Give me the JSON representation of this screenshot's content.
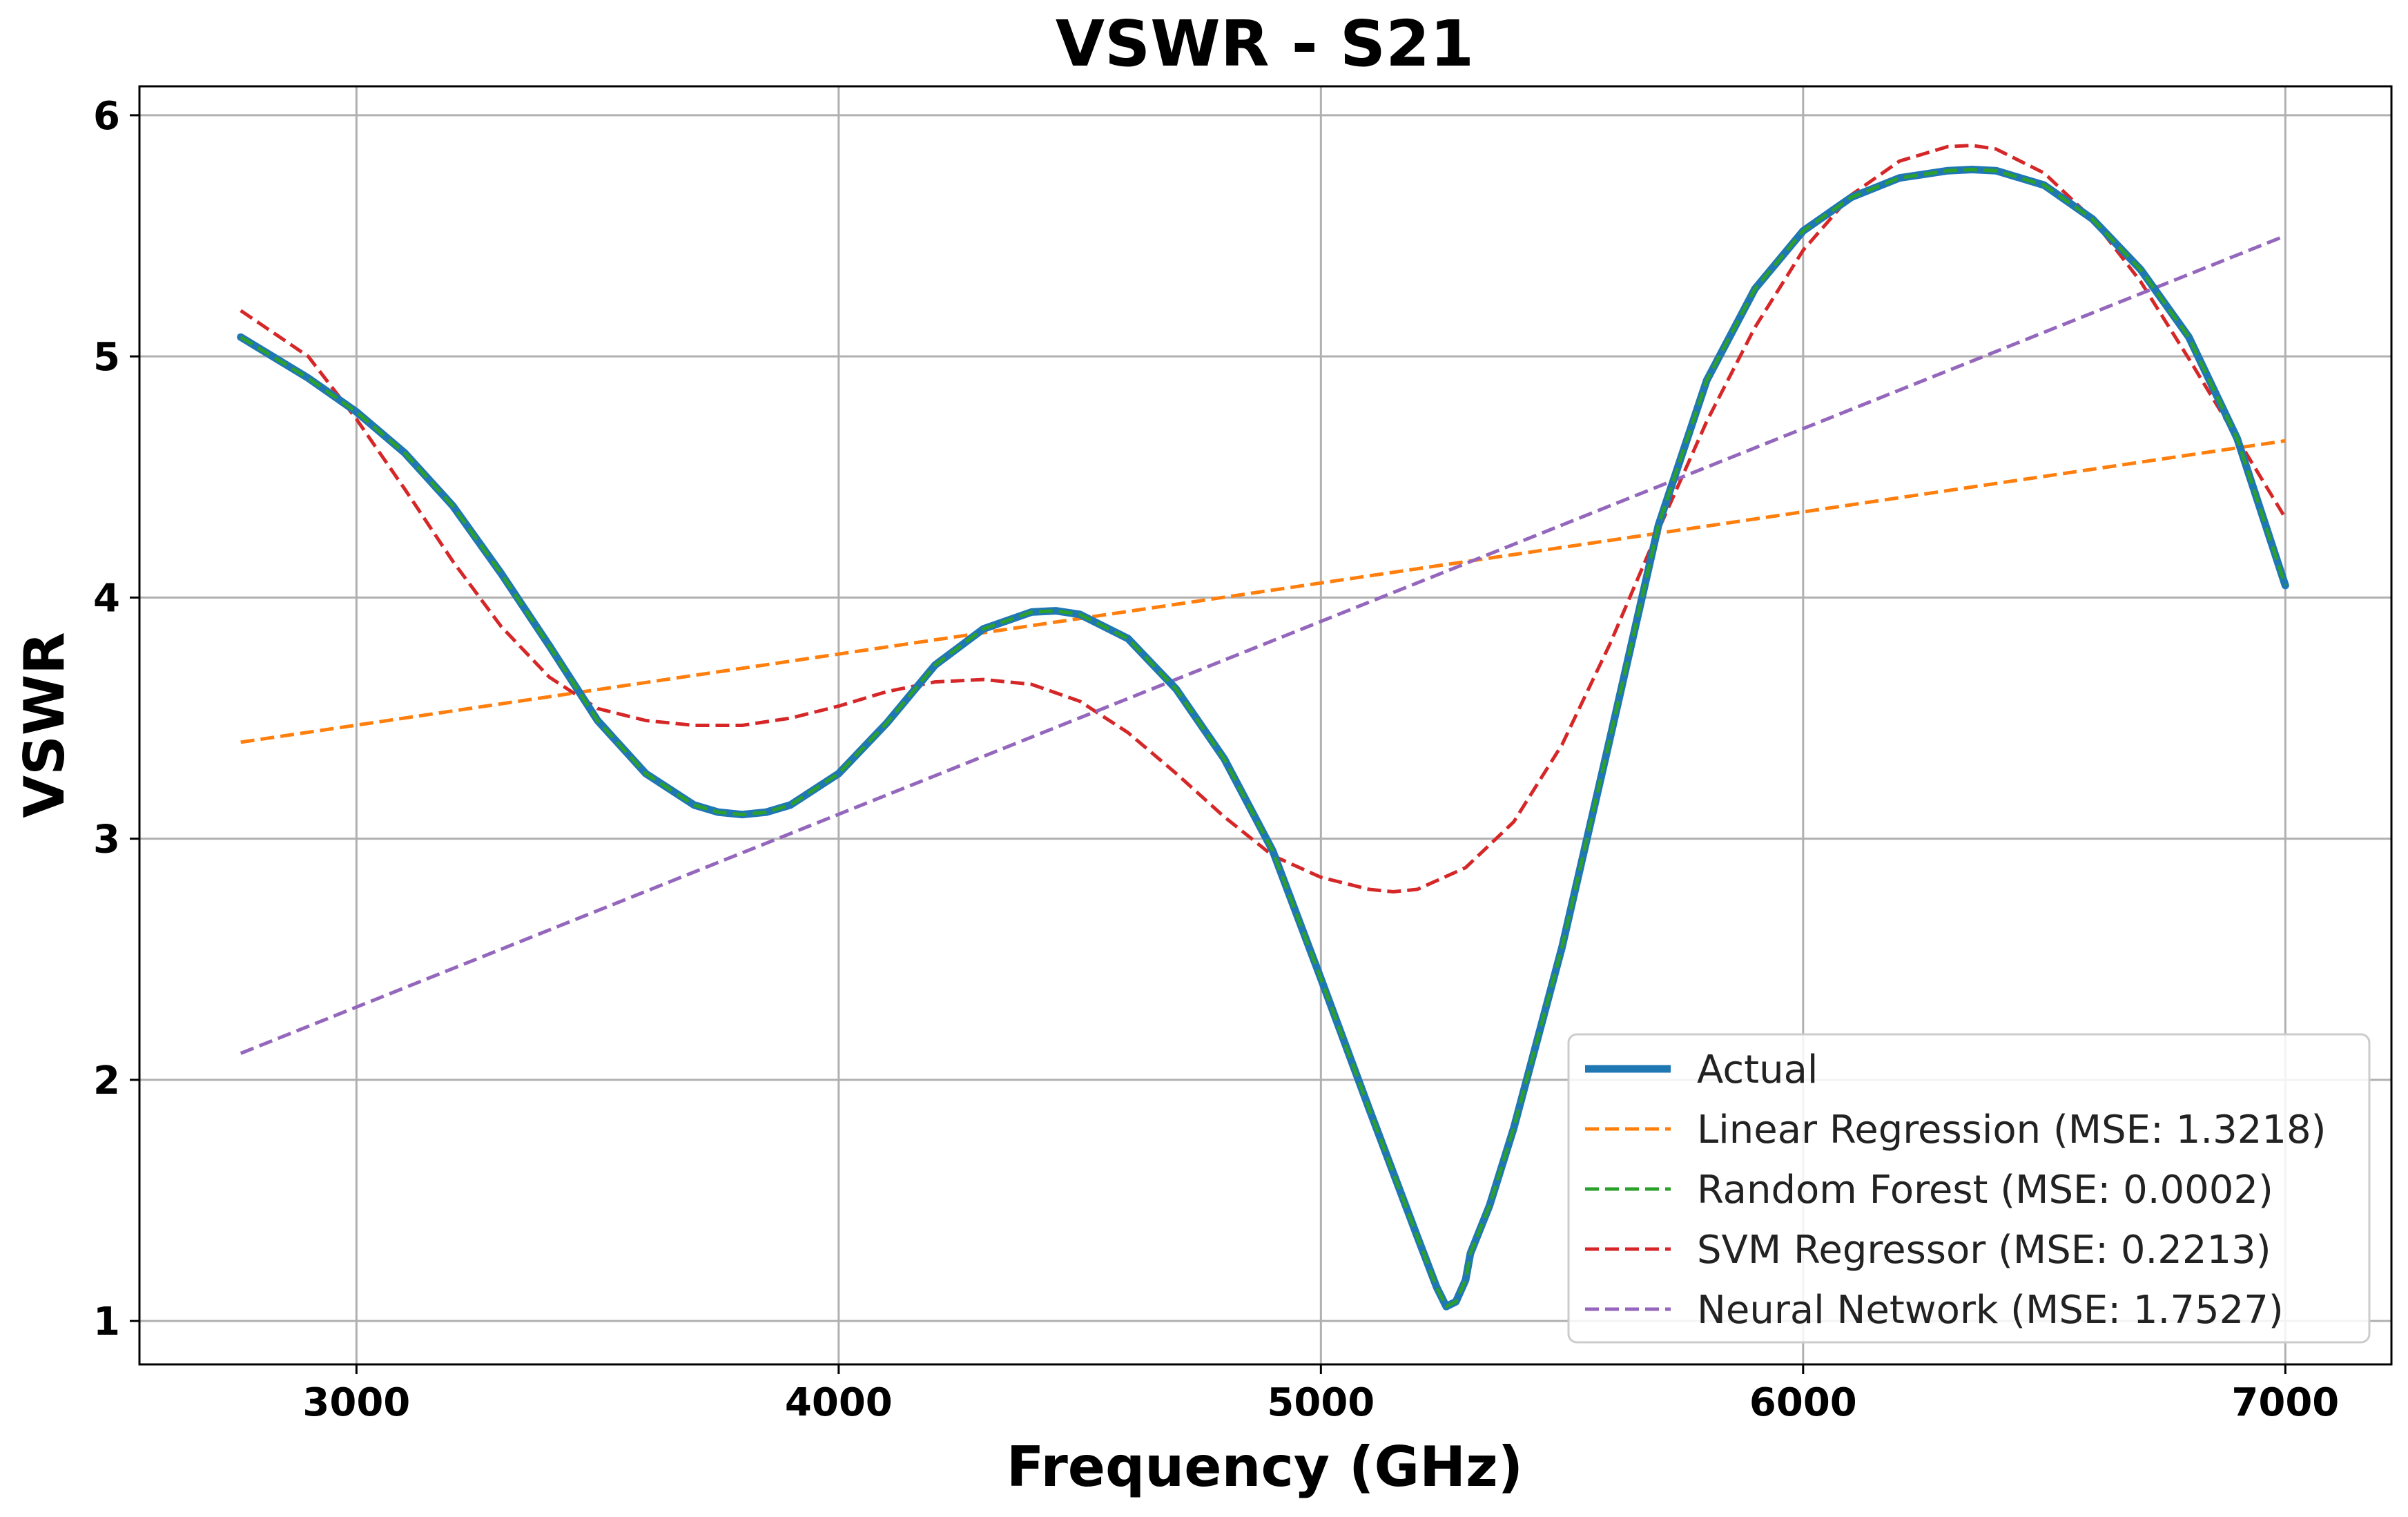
{
  "chart_data": {
    "type": "line",
    "title": "VSWR - S21",
    "xlabel": "Frequency (GHz)",
    "ylabel": "VSWR",
    "xlim": [
      2550,
      7220
    ],
    "ylim": [
      0.82,
      6.12
    ],
    "xticks": [
      3000,
      4000,
      5000,
      6000,
      7000
    ],
    "yticks": [
      1,
      2,
      3,
      4,
      5,
      6
    ],
    "xtick_labels": [
      "3000",
      "4000",
      "5000",
      "6000",
      "7000"
    ],
    "ytick_labels": [
      "1",
      "2",
      "3",
      "4",
      "5",
      "6"
    ],
    "grid": true,
    "legend_position": "lower-right",
    "series": [
      {
        "name": "Actual",
        "color": "#1f77b4",
        "style": "solid",
        "x": [
          2760,
          2900,
          3000,
          3100,
          3200,
          3300,
          3400,
          3500,
          3600,
          3700,
          3750,
          3800,
          3850,
          3900,
          4000,
          4100,
          4200,
          4300,
          4400,
          4450,
          4500,
          4600,
          4700,
          4800,
          4900,
          5000,
          5100,
          5200,
          5240,
          5260,
          5280,
          5300,
          5310,
          5350,
          5400,
          5500,
          5600,
          5700,
          5800,
          5900,
          6000,
          6100,
          6200,
          6300,
          6350,
          6400,
          6500,
          6600,
          6700,
          6800,
          6900,
          7000
        ],
        "y": [
          5.08,
          4.91,
          4.77,
          4.6,
          4.38,
          4.1,
          3.8,
          3.49,
          3.27,
          3.14,
          3.11,
          3.1,
          3.11,
          3.14,
          3.27,
          3.48,
          3.72,
          3.87,
          3.94,
          3.945,
          3.93,
          3.83,
          3.62,
          3.33,
          2.95,
          2.42,
          1.88,
          1.35,
          1.14,
          1.06,
          1.08,
          1.17,
          1.28,
          1.48,
          1.8,
          2.55,
          3.42,
          4.3,
          4.9,
          5.28,
          5.52,
          5.66,
          5.74,
          5.77,
          5.775,
          5.77,
          5.71,
          5.57,
          5.36,
          5.08,
          4.66,
          4.05
        ]
      },
      {
        "name": "Linear Regression (MSE: 1.3218)",
        "color": "#ff7f0e",
        "style": "dashed",
        "x": [
          2760,
          7000
        ],
        "y": [
          3.4,
          4.65
        ]
      },
      {
        "name": "Random Forest (MSE: 0.0002)",
        "color": "#2ca02c",
        "style": "dashed",
        "x": [
          2760,
          2900,
          3000,
          3100,
          3200,
          3300,
          3400,
          3500,
          3600,
          3700,
          3750,
          3800,
          3850,
          3900,
          4000,
          4100,
          4200,
          4300,
          4400,
          4450,
          4500,
          4600,
          4700,
          4800,
          4900,
          5000,
          5100,
          5200,
          5240,
          5260,
          5280,
          5300,
          5310,
          5350,
          5400,
          5500,
          5600,
          5700,
          5800,
          5900,
          6000,
          6100,
          6200,
          6300,
          6350,
          6400,
          6500,
          6600,
          6700,
          6800,
          6900,
          7000
        ],
        "y": [
          5.08,
          4.91,
          4.77,
          4.6,
          4.38,
          4.1,
          3.8,
          3.49,
          3.27,
          3.14,
          3.11,
          3.1,
          3.11,
          3.14,
          3.27,
          3.48,
          3.72,
          3.87,
          3.94,
          3.945,
          3.93,
          3.83,
          3.62,
          3.33,
          2.95,
          2.42,
          1.88,
          1.35,
          1.14,
          1.06,
          1.08,
          1.17,
          1.28,
          1.48,
          1.8,
          2.55,
          3.42,
          4.3,
          4.9,
          5.28,
          5.52,
          5.66,
          5.74,
          5.77,
          5.775,
          5.77,
          5.71,
          5.57,
          5.36,
          5.08,
          4.66,
          4.05
        ]
      },
      {
        "name": "SVM Regressor (MSE: 0.2213)",
        "color": "#d62728",
        "style": "dashed",
        "x": [
          2760,
          2900,
          3000,
          3100,
          3200,
          3300,
          3400,
          3500,
          3600,
          3700,
          3800,
          3900,
          4000,
          4100,
          4200,
          4300,
          4400,
          4500,
          4600,
          4700,
          4800,
          4900,
          5000,
          5100,
          5150,
          5200,
          5300,
          5400,
          5500,
          5600,
          5700,
          5800,
          5900,
          6000,
          6100,
          6200,
          6300,
          6350,
          6400,
          6500,
          6600,
          6700,
          6800,
          6900,
          7000
        ],
        "y": [
          5.19,
          5.0,
          4.74,
          4.45,
          4.15,
          3.88,
          3.67,
          3.54,
          3.49,
          3.47,
          3.47,
          3.5,
          3.55,
          3.61,
          3.65,
          3.66,
          3.64,
          3.57,
          3.44,
          3.27,
          3.09,
          2.93,
          2.84,
          2.79,
          2.78,
          2.79,
          2.88,
          3.07,
          3.39,
          3.81,
          4.28,
          4.73,
          5.12,
          5.44,
          5.67,
          5.81,
          5.87,
          5.875,
          5.86,
          5.76,
          5.57,
          5.31,
          4.99,
          4.66,
          4.33
        ]
      },
      {
        "name": "Neural Network (MSE: 1.7527)",
        "color": "#9467bd",
        "style": "dashed",
        "x": [
          2760,
          7000
        ],
        "y": [
          2.11,
          5.5
        ]
      }
    ]
  }
}
